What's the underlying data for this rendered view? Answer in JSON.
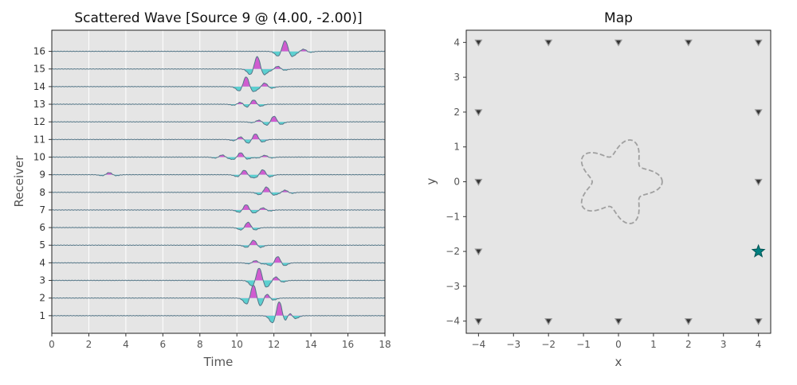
{
  "chart_data": [
    {
      "type": "line",
      "subtype": "wiggle-traces",
      "title": "Scattered Wave [Source 9 @ (4.00, -2.00)]",
      "xlabel": "Time",
      "ylabel": "Receiver",
      "xlim": [
        0,
        18
      ],
      "ylim": [
        0,
        17.2
      ],
      "xticks": [
        "0",
        "2",
        "4",
        "6",
        "8",
        "10",
        "12",
        "14",
        "16",
        "18"
      ],
      "yticks": [
        "1",
        "2",
        "3",
        "4",
        "5",
        "6",
        "7",
        "8",
        "9",
        "10",
        "11",
        "12",
        "13",
        "14",
        "15",
        "16"
      ],
      "grid": true,
      "colors": {
        "positive_fill": "#cc44cc",
        "negative_fill": "#44cccc",
        "trace": "#557788",
        "axes_bg": "#e5e5e5",
        "grid": "#ffffff"
      },
      "series": [
        {
          "name": "1",
          "wavelets": [
            {
              "t": 12.3,
              "a": 0.9
            },
            {
              "t": 12.8,
              "a": 0.35
            }
          ]
        },
        {
          "name": "2",
          "wavelets": [
            {
              "t": 10.9,
              "a": 0.75
            },
            {
              "t": 11.6,
              "a": 0.25
            }
          ]
        },
        {
          "name": "3",
          "wavelets": [
            {
              "t": 11.2,
              "a": 0.7
            },
            {
              "t": 12.1,
              "a": 0.2
            }
          ]
        },
        {
          "name": "4",
          "wavelets": [
            {
              "t": 12.2,
              "a": 0.35
            },
            {
              "t": 11.0,
              "a": 0.12
            }
          ]
        },
        {
          "name": "5",
          "wavelets": [
            {
              "t": 10.9,
              "a": 0.28
            }
          ]
        },
        {
          "name": "6",
          "wavelets": [
            {
              "t": 10.6,
              "a": 0.3
            }
          ]
        },
        {
          "name": "7",
          "wavelets": [
            {
              "t": 10.5,
              "a": 0.3
            },
            {
              "t": 11.4,
              "a": 0.12
            }
          ]
        },
        {
          "name": "8",
          "wavelets": [
            {
              "t": 11.6,
              "a": 0.3
            },
            {
              "t": 12.6,
              "a": 0.12
            }
          ]
        },
        {
          "name": "9",
          "wavelets": [
            {
              "t": 10.4,
              "a": 0.25
            },
            {
              "t": 11.4,
              "a": 0.28
            },
            {
              "t": 3.1,
              "a": 0.12
            }
          ]
        },
        {
          "name": "10",
          "wavelets": [
            {
              "t": 10.2,
              "a": 0.25
            },
            {
              "t": 9.2,
              "a": 0.12
            },
            {
              "t": 11.5,
              "a": 0.1
            }
          ]
        },
        {
          "name": "11",
          "wavelets": [
            {
              "t": 11.0,
              "a": 0.32
            },
            {
              "t": 10.2,
              "a": 0.15
            }
          ]
        },
        {
          "name": "12",
          "wavelets": [
            {
              "t": 12.0,
              "a": 0.32
            },
            {
              "t": 11.2,
              "a": 0.1
            }
          ]
        },
        {
          "name": "13",
          "wavelets": [
            {
              "t": 10.9,
              "a": 0.25
            },
            {
              "t": 10.2,
              "a": 0.12
            }
          ]
        },
        {
          "name": "14",
          "wavelets": [
            {
              "t": 10.5,
              "a": 0.55
            },
            {
              "t": 11.5,
              "a": 0.2
            }
          ]
        },
        {
          "name": "15",
          "wavelets": [
            {
              "t": 11.1,
              "a": 0.7
            },
            {
              "t": 12.2,
              "a": 0.15
            }
          ]
        },
        {
          "name": "16",
          "wavelets": [
            {
              "t": 12.6,
              "a": 0.6
            },
            {
              "t": 13.6,
              "a": 0.12
            }
          ]
        }
      ]
    },
    {
      "type": "scatter",
      "title": "Map",
      "xlabel": "x",
      "ylabel": "y",
      "xlim": [
        -4.35,
        4.35
      ],
      "ylim": [
        -4.35,
        4.35
      ],
      "xticks": [
        "−4",
        "−3",
        "−2",
        "−1",
        "0",
        "1",
        "2",
        "3",
        "4"
      ],
      "yticks": [
        "−4",
        "−3",
        "−2",
        "−1",
        "0",
        "1",
        "2",
        "3",
        "4"
      ],
      "receivers": [
        [
          -4,
          4
        ],
        [
          -2,
          4
        ],
        [
          0,
          4
        ],
        [
          2,
          4
        ],
        [
          4,
          4
        ],
        [
          -4,
          2
        ],
        [
          4,
          2
        ],
        [
          -4,
          0
        ],
        [
          4,
          0
        ],
        [
          -4,
          -2
        ],
        [
          4,
          -2
        ],
        [
          -4,
          -4
        ],
        [
          -2,
          -4
        ],
        [
          0,
          -4
        ],
        [
          2,
          -4
        ],
        [
          4,
          -4
        ]
      ],
      "source": {
        "x": 4.0,
        "y": -2.0
      },
      "scatterer": {
        "shape": "five-lobed star",
        "r0": 1.0,
        "amp": 0.25,
        "lobes": 5,
        "phase": 0.0
      },
      "colors": {
        "source": "#008080",
        "receiver": "#333333",
        "scatterer": "#a0a0a0",
        "axes_bg": "#e5e5e5"
      }
    }
  ]
}
